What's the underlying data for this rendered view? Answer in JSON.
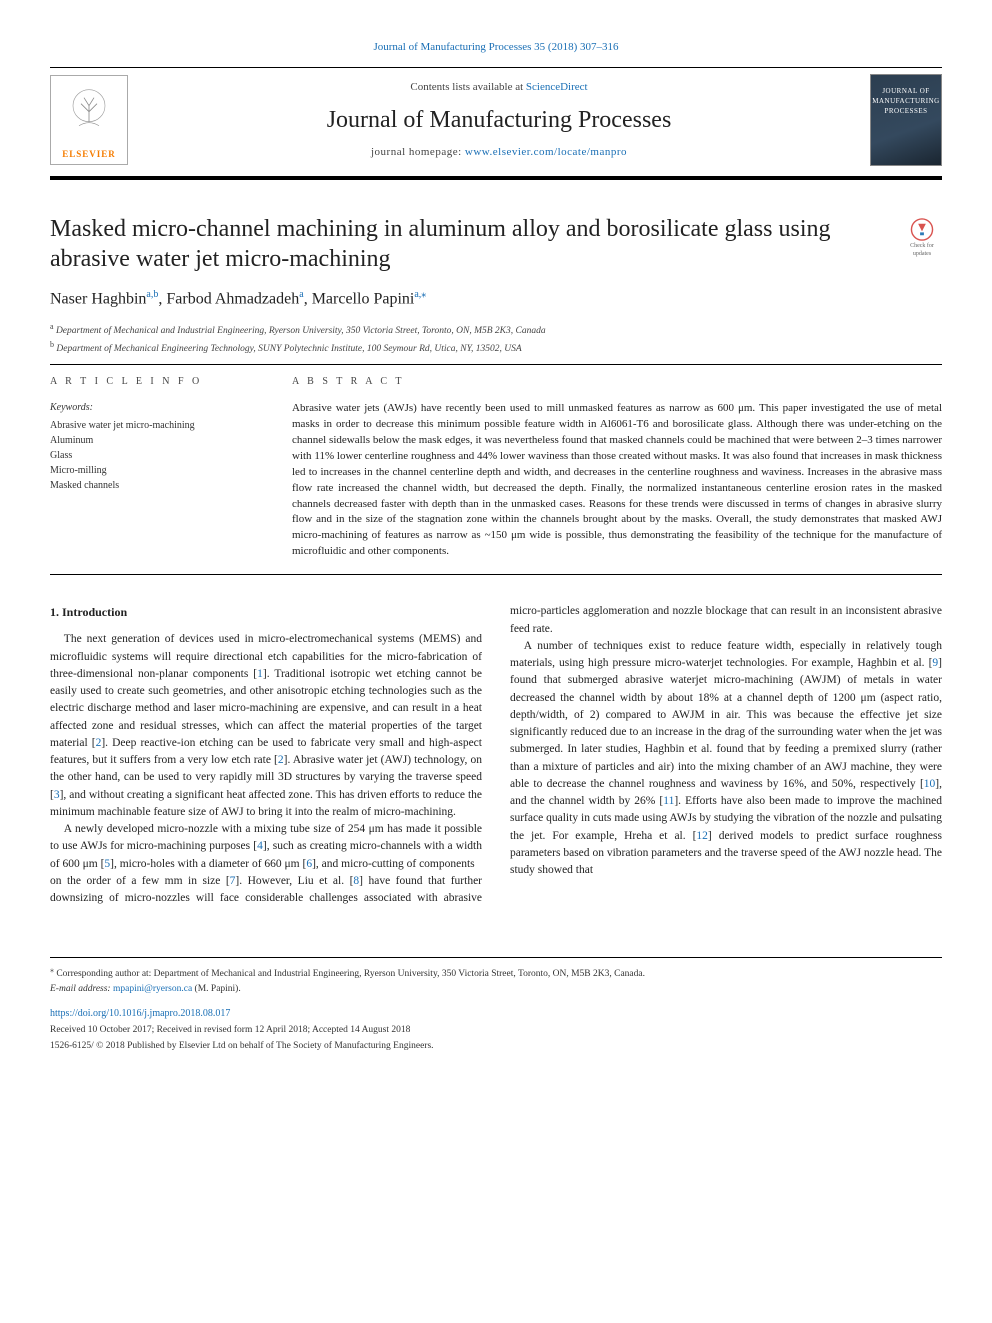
{
  "header": {
    "top_citation": "Journal of Manufacturing Processes 35 (2018) 307–316",
    "contents_prefix": "Contents lists available at ",
    "contents_link": "ScienceDirect",
    "journal": "Journal of Manufacturing Processes",
    "homepage_prefix": "journal homepage: ",
    "homepage_url": "www.elsevier.com/locate/manpro",
    "publisher": "ELSEVIER",
    "cover_line1": "JOURNAL OF",
    "cover_line2": "MANUFACTURING",
    "cover_line3": "PROCESSES"
  },
  "article": {
    "title": "Masked micro-channel machining in aluminum alloy and borosilicate glass using abrasive water jet micro-machining",
    "update_badge": "Check for updates",
    "authors_html": "Naser Haghbin",
    "author1": "Naser Haghbin",
    "author1_sup": "a,b",
    "author2": "Farbod Ahmadzadeh",
    "author2_sup": "a",
    "author3": "Marcello Papini",
    "author3_sup": "a,",
    "author3_corr": "⁎",
    "affiliations": {
      "a": "Department of Mechanical and Industrial Engineering, Ryerson University, 350 Victoria Street, Toronto, ON, M5B 2K3, Canada",
      "b": "Department of Mechanical Engineering Technology, SUNY Polytechnic Institute, 100 Seymour Rd, Utica, NY, 13502, USA"
    }
  },
  "info": {
    "heading": "A R T I C L E  I N F O",
    "kw_head": "Keywords:",
    "keywords": [
      "Abrasive water jet micro-machining",
      "Aluminum",
      "Glass",
      "Micro-milling",
      "Masked channels"
    ]
  },
  "abstract": {
    "heading": "A B S T R A C T",
    "text": "Abrasive water jets (AWJs) have recently been used to mill unmasked features as narrow as 600 μm. This paper investigated the use of metal masks in order to decrease this minimum possible feature width in Al6061-T6 and borosilicate glass. Although there was under-etching on the channel sidewalls below the mask edges, it was nevertheless found that masked channels could be machined that were between 2–3 times narrower with 11% lower centerline roughness and 44% lower waviness than those created without masks. It was also found that increases in mask thickness led to increases in the channel centerline depth and width, and decreases in the centerline roughness and waviness. Increases in the abrasive mass flow rate increased the channel width, but decreased the depth. Finally, the normalized instantaneous centerline erosion rates in the masked channels decreased faster with depth than in the unmasked cases. Reasons for these trends were discussed in terms of changes in abrasive slurry flow and in the size of the stagnation zone within the channels brought about by the masks. Overall, the study demonstrates that masked AWJ micro-machining of features as narrow as ~150 μm wide is possible, thus demonstrating the feasibility of the technique for the manufacture of microfluidic and other components."
  },
  "body": {
    "section1_title": "1. Introduction",
    "p1": "The next generation of devices used in micro-electromechanical systems (MEMS) and microfluidic systems will require directional etch capabilities for the micro-fabrication of three-dimensional non-planar components [1]. Traditional isotropic wet etching cannot be easily used to create such geometries, and other anisotropic etching technologies such as the electric discharge method and laser micro-machining are expensive, and can result in a heat affected zone and residual stresses, which can affect the material properties of the target material [2]. Deep reactive-ion etching can be used to fabricate very small and high-aspect features, but it suffers from a very low etch rate [2]. Abrasive water jet (AWJ) technology, on the other hand, can be used to very rapidly mill 3D structures by varying the traverse speed [3], and without creating a significant heat affected zone. This has driven efforts to reduce the minimum machinable feature size of AWJ to bring it into the realm of micro-machining.",
    "p2": "A newly developed micro-nozzle with a mixing tube size of 254 μm has made it possible to use AWJs for micro-machining purposes [4], such as creating micro-channels with a width of 600 μm [5], micro-holes with a diameter of 660 μm [6], and micro-cutting of components",
    "p3": "on the order of a few mm in size [7]. However, Liu et al. [8] have found that further downsizing of micro-nozzles will face considerable challenges associated with abrasive micro-particles agglomeration and nozzle blockage that can result in an inconsistent abrasive feed rate.",
    "p4": "A number of techniques exist to reduce feature width, especially in relatively tough materials, using high pressure micro-waterjet technologies. For example, Haghbin et al. [9] found that submerged abrasive waterjet micro-machining (AWJM) of metals in water decreased the channel width by about 18% at a channel depth of 1200 μm (aspect ratio, depth/width, of 2) compared to AWJM in air. This was because the effective jet size significantly reduced due to an increase in the drag of the surrounding water when the jet was submerged. In later studies, Haghbin et al. found that by feeding a premixed slurry (rather than a mixture of particles and air) into the mixing chamber of an AWJ machine, they were able to decrease the channel roughness and waviness by 16%, and 50%, respectively [10], and the channel width by 26% [11]. Efforts have also been made to improve the machined surface quality in cuts made using AWJs by studying the vibration of the nozzle and pulsating the jet. For example, Hreha et al. [12] derived models to predict surface roughness parameters based on vibration parameters and the traverse speed of the AWJ nozzle head. The study showed that"
  },
  "footer": {
    "corr_symbol": "⁎",
    "corr_text": "Corresponding author at: Department of Mechanical and Industrial Engineering, Ryerson University, 350 Victoria Street, Toronto, ON, M5B 2K3, Canada.",
    "email_label": "E-mail address:",
    "email": "mpapini@ryerson.ca",
    "email_person": "(M. Papini).",
    "doi": "https://doi.org/10.1016/j.jmapro.2018.08.017",
    "history": "Received 10 October 2017; Received in revised form 12 April 2018; Accepted 14 August 2018",
    "copyright": "1526-6125/ © 2018 Published by Elsevier Ltd on behalf of The Society of Manufacturing Engineers."
  },
  "colors": {
    "link": "#1a6fb5",
    "text": "#222222",
    "elsevier_orange": "#f57c00",
    "rule": "#000000"
  }
}
